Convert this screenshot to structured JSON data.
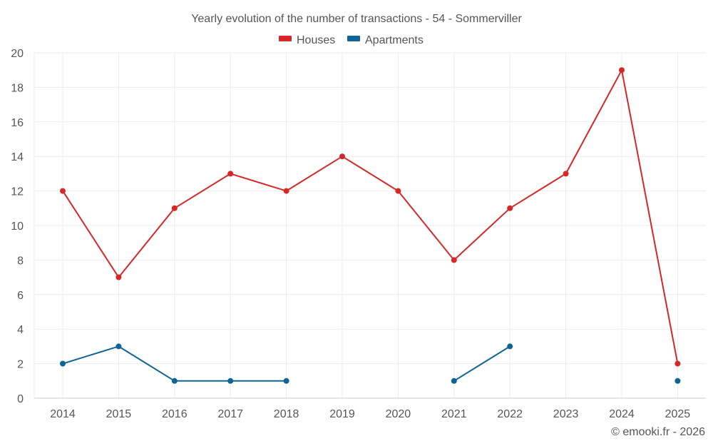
{
  "chart_data": {
    "type": "line",
    "title": "Yearly evolution of the number of transactions - 54 - Sommerviller",
    "xlabel": "",
    "ylabel": "",
    "categories": [
      "2014",
      "2015",
      "2016",
      "2017",
      "2018",
      "2019",
      "2020",
      "2021",
      "2022",
      "2023",
      "2024",
      "2025"
    ],
    "ylim": [
      0,
      20
    ],
    "yticks": [
      0,
      2,
      4,
      6,
      8,
      10,
      12,
      14,
      16,
      18,
      20
    ],
    "grid": true,
    "legend_position": "top-center",
    "series": [
      {
        "name": "Houses",
        "color": "#d62728",
        "values": [
          12,
          7,
          11,
          13,
          12,
          14,
          12,
          8,
          11,
          13,
          19,
          2
        ]
      },
      {
        "name": "Apartments",
        "color": "#0f6496",
        "values": [
          2,
          3,
          1,
          1,
          1,
          null,
          null,
          1,
          3,
          null,
          null,
          1
        ]
      }
    ]
  },
  "credit": "© emooki.fr - 2026"
}
